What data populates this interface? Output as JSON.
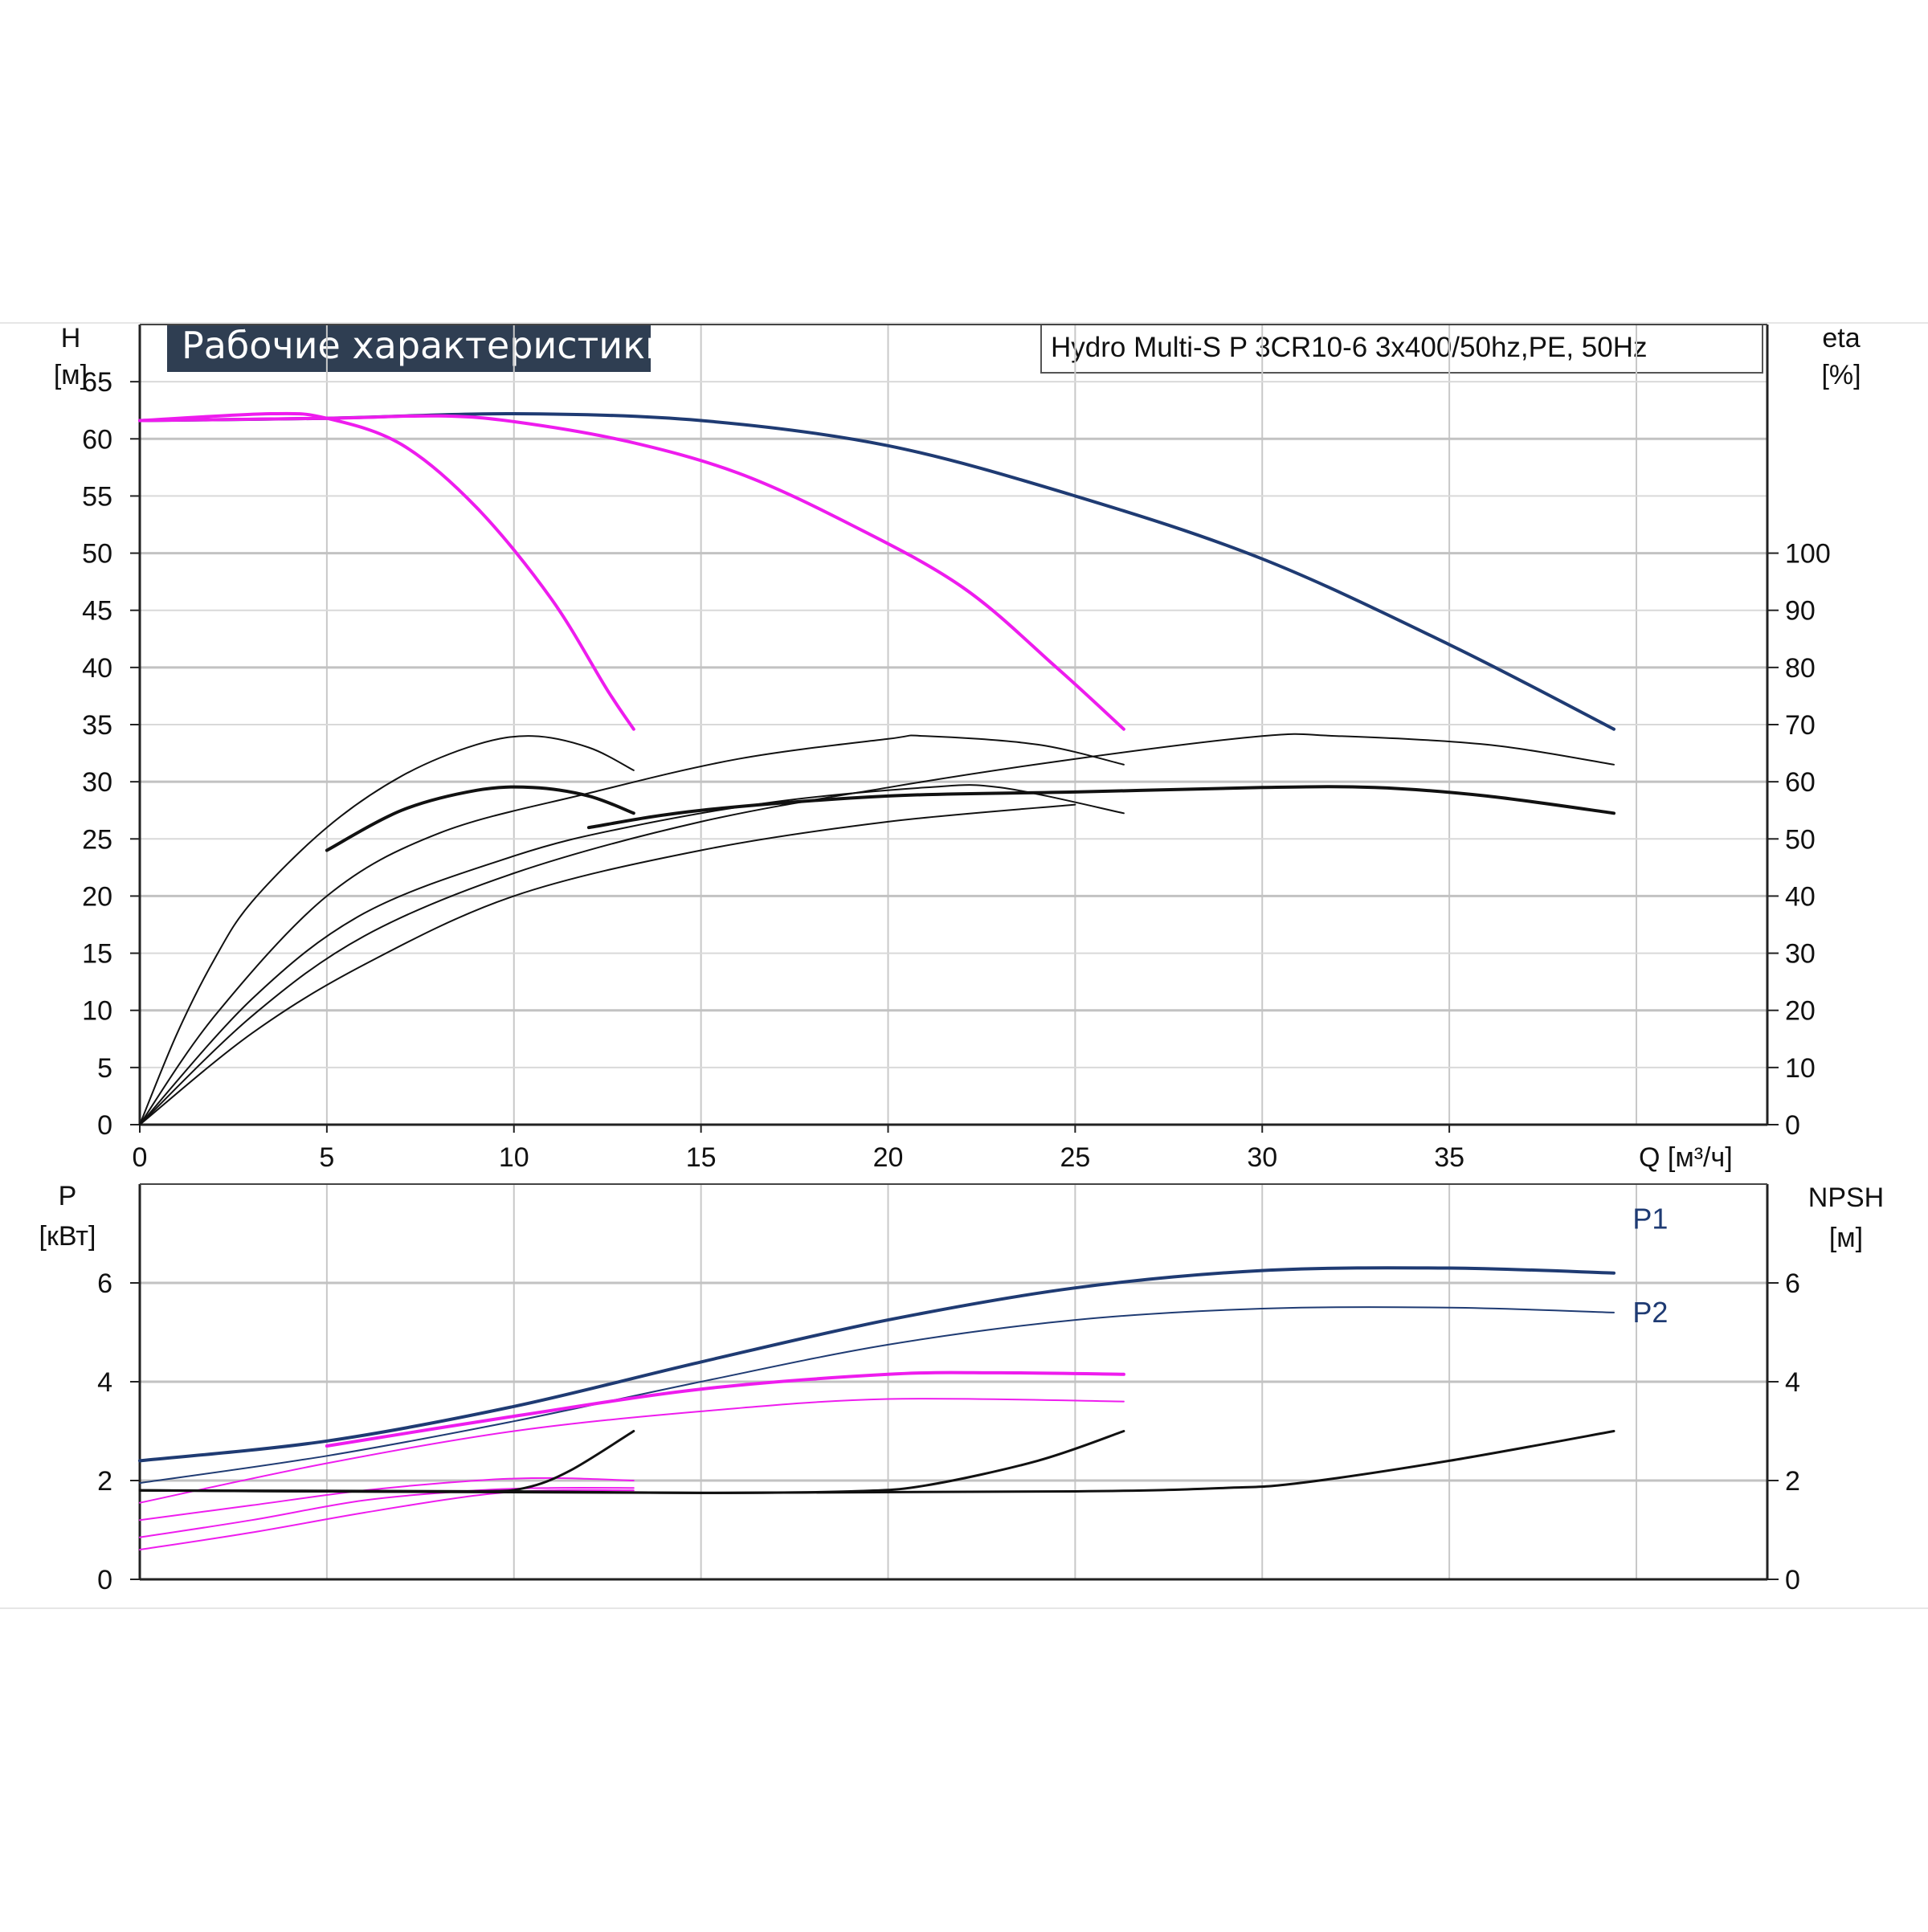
{
  "header": {
    "title": "Рабочие характеристики",
    "model": "Hydro Multi-S P 3CR10-6 3x400/50hz,PE, 50Hz"
  },
  "colors": {
    "navy": "#1f3b73",
    "magenta": "#ee1cee",
    "black": "#111111",
    "grid": "#c8c8c8",
    "title_bg": "#2f3e52"
  },
  "chart_data": [
    {
      "id": "head",
      "type": "line",
      "ylabel_top": "H",
      "ylabel_unit": "[м]",
      "y2label_top": "eta",
      "y2label_unit": "[%]",
      "xlabel": "Q [м³/ч]",
      "xlim": [
        0,
        43.5
      ],
      "ylim": [
        0,
        70
      ],
      "x_ticks": [
        0,
        5,
        10,
        15,
        20,
        25,
        30,
        35
      ],
      "y_ticks": [
        0,
        5,
        10,
        15,
        20,
        25,
        30,
        35,
        40,
        45,
        50,
        55,
        60,
        65
      ],
      "y2lim": [
        0,
        140
      ],
      "y2_ticks": [
        0,
        10,
        20,
        30,
        40,
        50,
        60,
        70,
        80,
        90,
        100
      ],
      "grid": true,
      "series": [
        {
          "axis": "y",
          "color": "navy",
          "width": 4,
          "points": [
            [
              0,
              61.6
            ],
            [
              5,
              61.8
            ],
            [
              10,
              62.2
            ],
            [
              15,
              61.6
            ],
            [
              20,
              59.4
            ],
            [
              25,
              55.0
            ],
            [
              30,
              49.5
            ],
            [
              35,
              42.0
            ],
            [
              39.4,
              34.6
            ]
          ]
        },
        {
          "axis": "y",
          "color": "magenta",
          "width": 4,
          "points": [
            [
              0,
              61.6
            ],
            [
              3.5,
              62.2
            ],
            [
              5,
              61.8
            ],
            [
              7,
              59.5
            ],
            [
              9,
              54.0
            ],
            [
              11,
              46.0
            ],
            [
              12.5,
              38.0
            ],
            [
              13.2,
              34.6
            ]
          ]
        },
        {
          "axis": "y",
          "color": "magenta",
          "width": 4,
          "points": [
            [
              0,
              61.6
            ],
            [
              5,
              61.8
            ],
            [
              8,
              62.0
            ],
            [
              10,
              61.5
            ],
            [
              13,
              59.8
            ],
            [
              16,
              57.0
            ],
            [
              19,
              52.5
            ],
            [
              22,
              47.0
            ],
            [
              24.5,
              40.0
            ],
            [
              26.3,
              34.6
            ]
          ]
        },
        {
          "axis": "y2",
          "color": "black",
          "width": 2,
          "points": [
            [
              0,
              0
            ],
            [
              1,
              16
            ],
            [
              2,
              29
            ],
            [
              3,
              39
            ],
            [
              5,
              52
            ],
            [
              7,
              61
            ],
            [
              9,
              66.5
            ],
            [
              10.5,
              68
            ],
            [
              12,
              66
            ],
            [
              13.2,
              62
            ]
          ]
        },
        {
          "axis": "y2",
          "color": "black",
          "width": 4,
          "points": [
            [
              5,
              48
            ],
            [
              7,
              55
            ],
            [
              9,
              58.5
            ],
            [
              10.5,
              59
            ],
            [
              12,
              57.5
            ],
            [
              13.2,
              54.5
            ]
          ]
        },
        {
          "axis": "y2",
          "color": "black",
          "width": 2,
          "points": [
            [
              0,
              0
            ],
            [
              2,
              19
            ],
            [
              5,
              40
            ],
            [
              8,
              51
            ],
            [
              12,
              58
            ],
            [
              16,
              64
            ],
            [
              20,
              67.5
            ],
            [
              21,
              68
            ],
            [
              24,
              66.5
            ],
            [
              26.3,
              63
            ]
          ]
        },
        {
          "axis": "y2",
          "color": "black",
          "width": 2,
          "points": [
            [
              0,
              0
            ],
            [
              3,
              22
            ],
            [
              6,
              37
            ],
            [
              10,
              47
            ],
            [
              13,
              52
            ],
            [
              17,
              56.5
            ],
            [
              21,
              59
            ],
            [
              23,
              59
            ],
            [
              26.3,
              54.5
            ]
          ]
        },
        {
          "axis": "y2",
          "color": "black",
          "width": 2,
          "points": [
            [
              0,
              0
            ],
            [
              3,
              19
            ],
            [
              6,
              33
            ],
            [
              10,
              44
            ],
            [
              15,
              53
            ],
            [
              20,
              59
            ],
            [
              25,
              64
            ],
            [
              30,
              68
            ],
            [
              32,
              68
            ],
            [
              36,
              66.5
            ],
            [
              39.4,
              63
            ]
          ]
        },
        {
          "axis": "y2",
          "color": "black",
          "width": 4,
          "points": [
            [
              12,
              52
            ],
            [
              15,
              55
            ],
            [
              20,
              57.5
            ],
            [
              25,
              58.2
            ],
            [
              30,
              59
            ],
            [
              33,
              59
            ],
            [
              36,
              57.5
            ],
            [
              39.4,
              54.5
            ]
          ]
        },
        {
          "axis": "y2",
          "color": "black",
          "width": 2,
          "points": [
            [
              0,
              0
            ],
            [
              3,
              16
            ],
            [
              6,
              28
            ],
            [
              10,
              40
            ],
            [
              15,
              48
            ],
            [
              20,
              53
            ],
            [
              25,
              56
            ]
          ]
        }
      ]
    },
    {
      "id": "power",
      "type": "line",
      "ylabel_top": "P",
      "ylabel_unit": "[кВт]",
      "y2label_top": "NPSH",
      "y2label_unit": "[м]",
      "xlim": [
        0,
        43.5
      ],
      "ylim": [
        0,
        8
      ],
      "y_ticks": [
        0,
        2,
        4,
        6
      ],
      "y2_ticks": [
        0,
        2,
        4,
        6
      ],
      "grid": true,
      "series_labels": [
        {
          "text": "P1",
          "at": [
            39.3,
            7.1
          ]
        },
        {
          "text": "P2",
          "at": [
            39.3,
            5.2
          ]
        }
      ],
      "series": [
        {
          "axis": "y",
          "color": "navy",
          "width": 4,
          "points": [
            [
              0,
              2.4
            ],
            [
              5,
              2.8
            ],
            [
              10,
              3.5
            ],
            [
              15,
              4.4
            ],
            [
              20,
              5.25
            ],
            [
              25,
              5.9
            ],
            [
              30,
              6.25
            ],
            [
              35,
              6.3
            ],
            [
              39.4,
              6.2
            ]
          ]
        },
        {
          "axis": "y",
          "color": "navy",
          "width": 2,
          "points": [
            [
              0,
              1.95
            ],
            [
              5,
              2.5
            ],
            [
              10,
              3.2
            ],
            [
              15,
              4.0
            ],
            [
              20,
              4.75
            ],
            [
              25,
              5.25
            ],
            [
              30,
              5.48
            ],
            [
              35,
              5.5
            ],
            [
              39.4,
              5.4
            ]
          ]
        },
        {
          "axis": "y",
          "color": "magenta",
          "width": 4,
          "points": [
            [
              5,
              2.7
            ],
            [
              10,
              3.3
            ],
            [
              15,
              3.85
            ],
            [
              20,
              4.15
            ],
            [
              23,
              4.18
            ],
            [
              26.3,
              4.15
            ]
          ]
        },
        {
          "axis": "y",
          "color": "magenta",
          "width": 2,
          "points": [
            [
              0,
              1.55
            ],
            [
              5,
              2.35
            ],
            [
              10,
              3.0
            ],
            [
              15,
              3.4
            ],
            [
              20,
              3.65
            ],
            [
              26.3,
              3.6
            ]
          ]
        },
        {
          "axis": "y",
          "color": "magenta",
          "width": 2,
          "points": [
            [
              0,
              1.2
            ],
            [
              3,
              1.5
            ],
            [
              6,
              1.8
            ],
            [
              9,
              2.0
            ],
            [
              11,
              2.05
            ],
            [
              13.2,
              2.0
            ]
          ]
        },
        {
          "axis": "y",
          "color": "magenta",
          "width": 2,
          "points": [
            [
              0,
              0.85
            ],
            [
              3,
              1.2
            ],
            [
              6,
              1.6
            ],
            [
              9,
              1.8
            ],
            [
              11,
              1.85
            ],
            [
              13.2,
              1.85
            ]
          ]
        },
        {
          "axis": "y",
          "color": "magenta",
          "width": 2,
          "points": [
            [
              0,
              0.6
            ],
            [
              3,
              0.95
            ],
            [
              6,
              1.35
            ],
            [
              9,
              1.7
            ],
            [
              11,
              1.8
            ],
            [
              13.2,
              1.8
            ]
          ]
        },
        {
          "axis": "y",
          "color": "black",
          "width": 3,
          "points": [
            [
              0,
              1.8
            ],
            [
              5,
              1.78
            ],
            [
              9,
              1.78
            ],
            [
              10.3,
              1.85
            ],
            [
              11.5,
              2.2
            ],
            [
              13.2,
              3.0
            ]
          ]
        },
        {
          "axis": "y",
          "color": "black",
          "width": 3,
          "points": [
            [
              0,
              1.8
            ],
            [
              10,
              1.78
            ],
            [
              15,
              1.75
            ],
            [
              19,
              1.78
            ],
            [
              21,
              1.9
            ],
            [
              24,
              2.4
            ],
            [
              26.3,
              3.0
            ]
          ]
        },
        {
          "axis": "y",
          "color": "black",
          "width": 3,
          "points": [
            [
              0,
              1.8
            ],
            [
              15,
              1.75
            ],
            [
              25,
              1.78
            ],
            [
              29,
              1.85
            ],
            [
              31,
              1.95
            ],
            [
              35,
              2.4
            ],
            [
              39.4,
              3.0
            ]
          ]
        }
      ]
    }
  ]
}
